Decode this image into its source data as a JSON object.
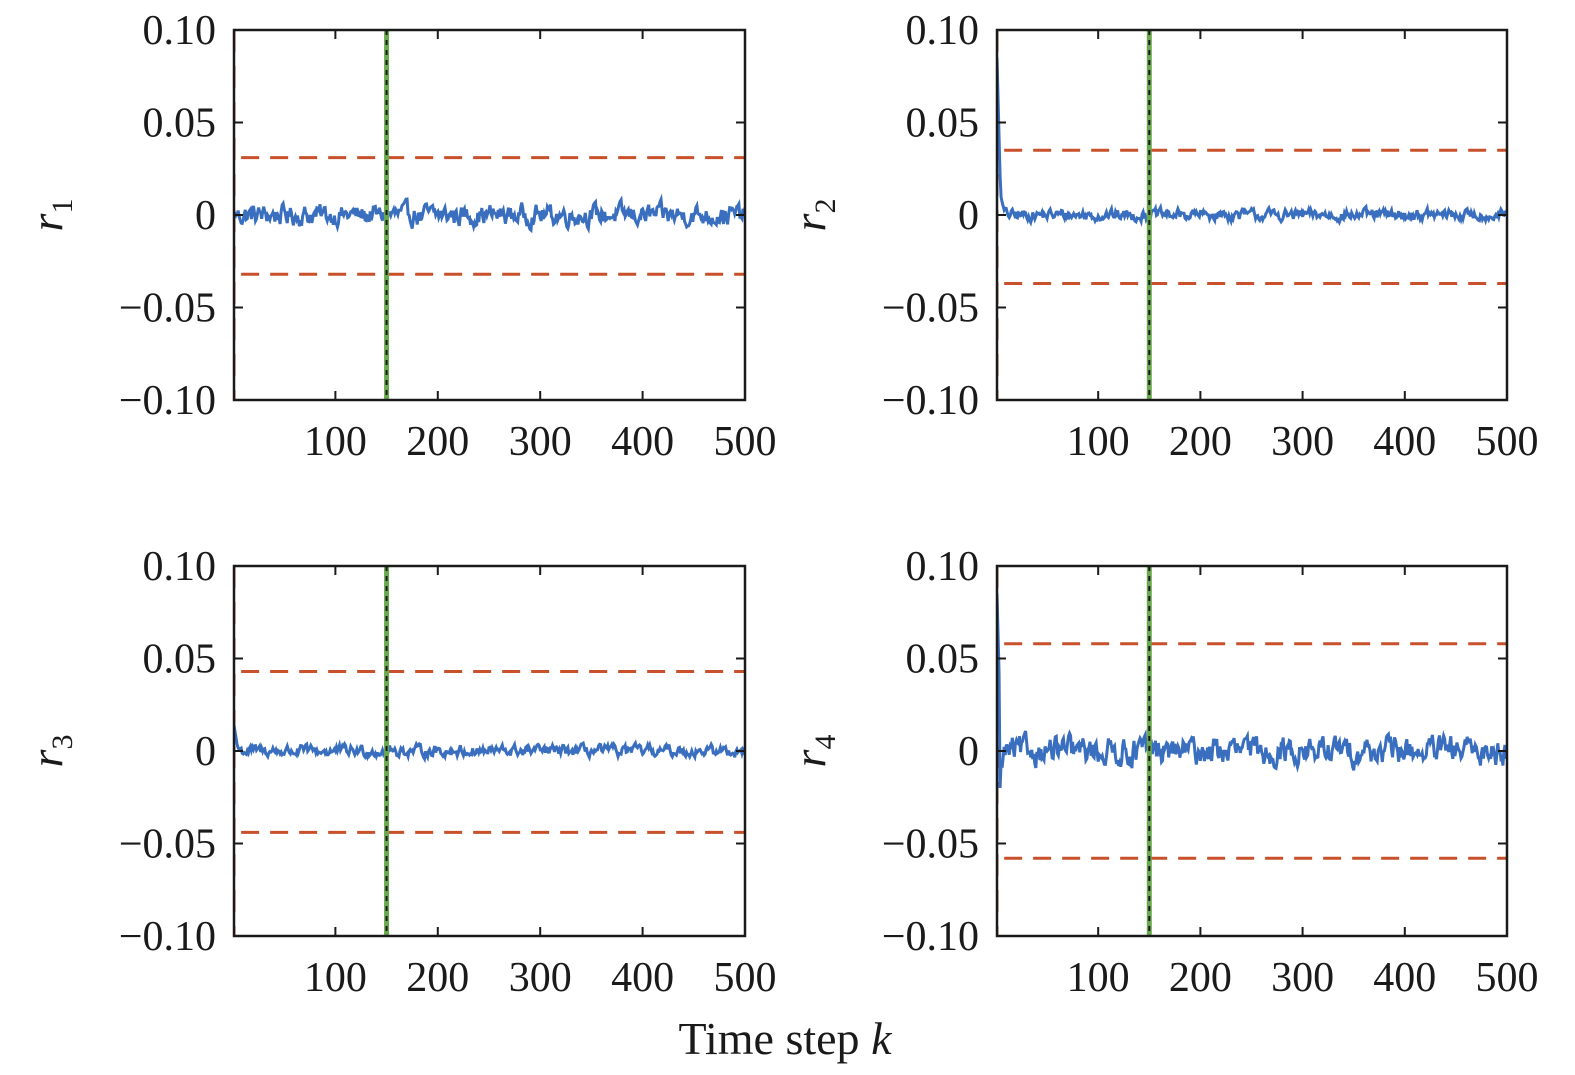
{
  "figure": {
    "xlabel_text": "Time step ",
    "xlabel_var": "k"
  },
  "chart_data": [
    {
      "type": "line",
      "ylabel": "r",
      "ylabel_sub": "1",
      "xlim": [
        1,
        500
      ],
      "ylim": [
        -0.1,
        0.1
      ],
      "xticks": [
        100,
        200,
        300,
        400,
        500
      ],
      "xtick_labels": [
        "100",
        "200",
        "300",
        "400",
        "500"
      ],
      "yticks": [
        0.1,
        0.05,
        0,
        -0.05,
        -0.1
      ],
      "ytick_labels": [
        "0.10",
        "0.05",
        "0",
        "−0.05",
        "−0.10"
      ],
      "threshold_upper": 0.031,
      "threshold_lower": -0.032,
      "initial_peak": 0.0,
      "noise_amplitude": 0.0045,
      "vertical_marker_x": 150,
      "colors": {
        "residual": "#3a6fbf",
        "threshold": "#c8502a",
        "marker_green": "#6aa84f",
        "marker_black": "#1a1a1a"
      }
    },
    {
      "type": "line",
      "ylabel": "r",
      "ylabel_sub": "2",
      "xlim": [
        1,
        500
      ],
      "ylim": [
        -0.1,
        0.1
      ],
      "xticks": [
        100,
        200,
        300,
        400,
        500
      ],
      "xtick_labels": [
        "100",
        "200",
        "300",
        "400",
        "500"
      ],
      "yticks": [
        0.1,
        0.05,
        0,
        -0.05,
        -0.1
      ],
      "ytick_labels": [
        "0.10",
        "0.05",
        "0",
        "−0.05",
        "−0.10"
      ],
      "threshold_upper": 0.035,
      "threshold_lower": -0.037,
      "initial_peak": 0.085,
      "noise_amplitude": 0.0025,
      "vertical_marker_x": 150,
      "colors": {
        "residual": "#3a6fbf",
        "threshold": "#c8502a",
        "marker_green": "#6aa84f",
        "marker_black": "#1a1a1a"
      }
    },
    {
      "type": "line",
      "ylabel": "r",
      "ylabel_sub": "3",
      "xlim": [
        1,
        500
      ],
      "ylim": [
        -0.1,
        0.1
      ],
      "xticks": [
        100,
        200,
        300,
        400,
        500
      ],
      "xtick_labels": [
        "100",
        "200",
        "300",
        "400",
        "500"
      ],
      "yticks": [
        0.1,
        0.05,
        0,
        -0.05,
        -0.1
      ],
      "ytick_labels": [
        "0.10",
        "0.05",
        "0",
        "−0.05",
        "−0.10"
      ],
      "threshold_upper": 0.043,
      "threshold_lower": -0.044,
      "initial_peak": 0.014,
      "noise_amplitude": 0.0025,
      "vertical_marker_x": 150,
      "colors": {
        "residual": "#3a6fbf",
        "threshold": "#c8502a",
        "marker_green": "#6aa84f",
        "marker_black": "#1a1a1a"
      }
    },
    {
      "type": "line",
      "ylabel": "r",
      "ylabel_sub": "4",
      "xlim": [
        1,
        500
      ],
      "ylim": [
        -0.1,
        0.1
      ],
      "xticks": [
        100,
        200,
        300,
        400,
        500
      ],
      "xtick_labels": [
        "100",
        "200",
        "300",
        "400",
        "500"
      ],
      "yticks": [
        0.1,
        0.05,
        0,
        -0.05,
        -0.1
      ],
      "ytick_labels": [
        "0.10",
        "0.05",
        "0",
        "−0.05",
        "−0.10"
      ],
      "threshold_upper": 0.058,
      "threshold_lower": -0.058,
      "initial_peak": 0.085,
      "noise_amplitude": 0.006,
      "vertical_marker_x": 150,
      "colors": {
        "residual": "#3a6fbf",
        "threshold": "#c8502a",
        "marker_green": "#6aa84f",
        "marker_black": "#1a1a1a"
      }
    }
  ]
}
